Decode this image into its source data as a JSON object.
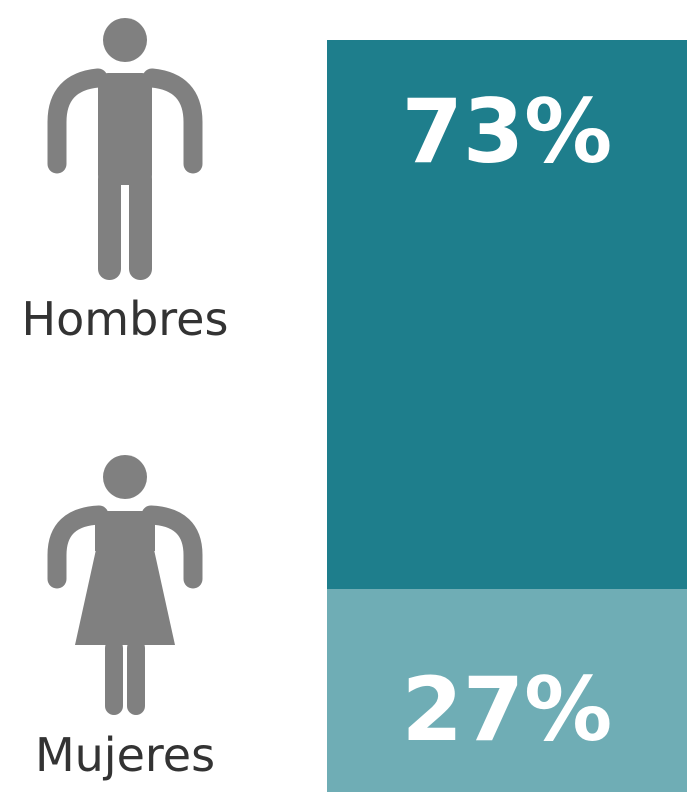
{
  "chart_data": {
    "type": "bar",
    "stacked": true,
    "categories": [
      "Hombres",
      "Mujeres"
    ],
    "values": [
      73,
      27
    ],
    "value_labels": [
      "73%",
      "27%"
    ],
    "title": "",
    "xlabel": "",
    "ylabel": ""
  },
  "colors": {
    "hombres": "#1e7e8c",
    "mujeres": "#6fadb5",
    "icon": "#808080"
  },
  "icons": {
    "hombres": "man-icon",
    "mujeres": "woman-icon"
  }
}
